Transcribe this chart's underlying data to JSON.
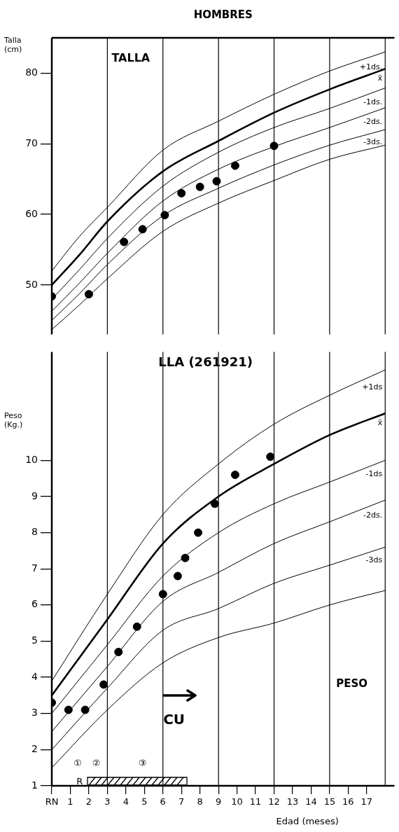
{
  "chart_data": [
    {
      "type": "line",
      "title": "HOMBRES",
      "subtitle": "TALLA",
      "ylabel": "Talla (cm)",
      "xlim": [
        0,
        18.5
      ],
      "ylim": [
        43,
        85
      ],
      "yticks": [
        50,
        60,
        70,
        80
      ],
      "tick_labels": "y",
      "grid": false,
      "legend": false,
      "ref_lines": [
        {
          "axis": "x",
          "value": 3
        },
        {
          "axis": "x",
          "value": 6
        },
        {
          "axis": "x",
          "value": 9
        },
        {
          "axis": "x",
          "value": 12
        },
        {
          "axis": "x",
          "value": 15
        },
        {
          "axis": "x",
          "value": 18
        }
      ],
      "series": [
        {
          "name": "+1ds.",
          "type": "line",
          "color": "#000000",
          "x": [
            0,
            1.5,
            3,
            6,
            9,
            12,
            15,
            18
          ],
          "values": [
            52,
            56.9,
            61.0,
            69.1,
            73.2,
            77.0,
            80.3,
            83.0
          ]
        },
        {
          "name": "x̄",
          "type": "line",
          "color": "#000000",
          "x": [
            0,
            1.5,
            3,
            6,
            9,
            12,
            15,
            18
          ],
          "values": [
            50,
            54.3,
            59.0,
            66.1,
            70.4,
            74.4,
            77.7,
            80.6
          ]
        },
        {
          "name": "-1ds.",
          "type": "line",
          "color": "#000000",
          "x": [
            0,
            1.5,
            3,
            6,
            9,
            12,
            15,
            18
          ],
          "values": [
            48,
            52.2,
            56.6,
            64.0,
            68.8,
            72.3,
            75.0,
            77.9
          ]
        },
        {
          "name": "-2ds.",
          "type": "line",
          "color": "#000000",
          "x": [
            0,
            1.5,
            3,
            6,
            9,
            12,
            15,
            18
          ],
          "values": [
            46.3,
            50.3,
            54.5,
            61.9,
            66.4,
            69.6,
            72.3,
            75.1
          ]
        },
        {
          "name": "-3ds.",
          "type": "line",
          "color": "#000000",
          "x": [
            0,
            1.5,
            3,
            6,
            9,
            12,
            15,
            18
          ],
          "values": [
            45,
            48.8,
            52.9,
            59.8,
            63.7,
            67.0,
            69.8,
            72.0
          ]
        },
        {
          "type": "line",
          "color": "#000000",
          "x": [
            0,
            1.5,
            3,
            6,
            9,
            12,
            15,
            18
          ],
          "values": [
            43.7,
            47.2,
            50.9,
            57.6,
            61.6,
            64.8,
            67.8,
            69.8
          ]
        },
        {
          "type": "scatter",
          "color": "#000000",
          "marker": "circle",
          "x": [
            0,
            2,
            3.9,
            4.9,
            6.1,
            7,
            8,
            8.9,
            9.9,
            12
          ],
          "values": [
            48.4,
            48.7,
            56.1,
            57.9,
            59.9,
            63.0,
            63.9,
            64.7,
            66.9,
            69.7
          ]
        }
      ]
    },
    {
      "type": "line",
      "title": "PESO",
      "subtitle": "LLA (261921)",
      "xlabel": "Edad (meses)",
      "ylabel": "Peso (Kg.)",
      "xlim": [
        0,
        18.5
      ],
      "ylim": [
        1,
        13
      ],
      "yticks": [
        1,
        2,
        3,
        4,
        5,
        6,
        7,
        8,
        9,
        10
      ],
      "xticks": [
        {
          "value": 0,
          "label": "RN"
        },
        1,
        2,
        3,
        4,
        5,
        6,
        7,
        8,
        9,
        10,
        11,
        12,
        13,
        14,
        15,
        16,
        17
      ],
      "grid": false,
      "legend": false,
      "ref_lines": [
        {
          "axis": "x",
          "value": 3
        },
        {
          "axis": "x",
          "value": 6
        },
        {
          "axis": "x",
          "value": 9
        },
        {
          "axis": "x",
          "value": 12
        },
        {
          "axis": "x",
          "value": 15
        },
        {
          "axis": "x",
          "value": 18
        }
      ],
      "annotations": [
        "①",
        "②",
        "③",
        "R",
        "CU"
      ],
      "series": [
        {
          "name": "+1ds",
          "type": "line",
          "color": "#000000",
          "x": [
            0,
            3,
            6,
            9,
            12,
            15,
            18
          ],
          "values": [
            3.9,
            6.3,
            8.5,
            9.9,
            11.0,
            11.8,
            12.5
          ]
        },
        {
          "name": "x̄",
          "type": "line",
          "color": "#000000",
          "x": [
            0,
            3,
            6,
            9,
            12,
            15,
            18
          ],
          "values": [
            3.5,
            5.6,
            7.7,
            9.0,
            9.9,
            10.7,
            11.3
          ]
        },
        {
          "name": "-1ds",
          "type": "line",
          "color": "#000000",
          "x": [
            0,
            3,
            6,
            9,
            12,
            15,
            18
          ],
          "values": [
            3.0,
            4.9,
            6.8,
            8.0,
            8.8,
            9.4,
            10.0
          ]
        },
        {
          "name": "-2ds.",
          "type": "line",
          "color": "#000000",
          "x": [
            0,
            3,
            6,
            9,
            12,
            15,
            18
          ],
          "values": [
            2.5,
            4.3,
            6.1,
            6.9,
            7.7,
            8.3,
            8.9
          ]
        },
        {
          "name": "-3ds",
          "type": "line",
          "color": "#000000",
          "x": [
            0,
            3,
            6,
            9,
            12,
            15,
            18
          ],
          "values": [
            2.0,
            3.7,
            5.3,
            5.9,
            6.6,
            7.1,
            7.6
          ]
        },
        {
          "type": "line",
          "color": "#000000",
          "x": [
            0,
            3,
            6,
            9,
            12,
            15,
            18
          ],
          "values": [
            1.5,
            3.1,
            4.4,
            5.1,
            5.5,
            6.0,
            6.4
          ]
        },
        {
          "type": "scatter",
          "color": "#000000",
          "marker": "circle",
          "x": [
            0,
            0.9,
            1.8,
            2.8,
            3.6,
            4.6,
            6,
            6.8,
            7.2,
            7.9,
            8.8,
            9.9,
            11.8
          ],
          "values": [
            3.3,
            3.1,
            3.1,
            3.8,
            4.7,
            5.4,
            6.3,
            6.8,
            7.3,
            8.0,
            8.8,
            9.6,
            10.1
          ]
        }
      ]
    }
  ]
}
